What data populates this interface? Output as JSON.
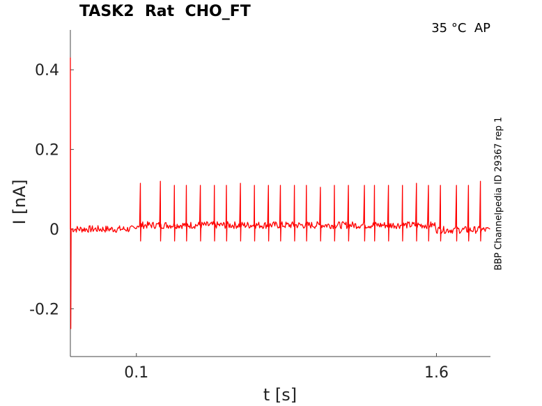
{
  "header": {
    "title": "TASK2  Rat  CHO_FT",
    "condition": "35 °C  AP"
  },
  "side_label": "BBP Channelpedia ID 29367 rep 1",
  "chart_data": {
    "type": "line",
    "title": "TASK2  Rat  CHO_FT",
    "xlabel": "t [s]",
    "ylabel": "I [nA]",
    "xlim": [
      -0.23,
      1.87
    ],
    "ylim": [
      -0.32,
      0.5
    ],
    "x_ticks": [
      {
        "value": 0.1,
        "label": "0.1"
      },
      {
        "value": 1.6,
        "label": "1.6"
      }
    ],
    "y_ticks": [
      {
        "value": 0.4,
        "label": "0.4"
      },
      {
        "value": 0.2,
        "label": "0.2"
      },
      {
        "value": 0,
        "label": "0"
      },
      {
        "value": -0.2,
        "label": "-0.2"
      }
    ],
    "grid": false,
    "series": [
      {
        "color": "#ff0000",
        "description": "AP-clamp current trace",
        "stimulus_artifact": {
          "t": -0.23,
          "peak": 0.43,
          "trough": -0.25
        },
        "baseline_before": {
          "t_start": -0.23,
          "t_end": 0.1,
          "level": 0.0
        },
        "baseline_during": {
          "t_start": 0.1,
          "t_end": 1.6,
          "level": 0.01
        },
        "baseline_after": {
          "t_start": 1.6,
          "t_end": 1.87,
          "level": -0.002
        },
        "spike_times": [
          0.12,
          0.22,
          0.29,
          0.35,
          0.42,
          0.49,
          0.55,
          0.62,
          0.69,
          0.76,
          0.82,
          0.89,
          0.95,
          1.02,
          1.09,
          1.16,
          1.24,
          1.29,
          1.36,
          1.43,
          1.5,
          1.56,
          1.62,
          1.7,
          1.76,
          1.82
        ],
        "spike_peaks": [
          0.115,
          0.12,
          0.11,
          0.11,
          0.11,
          0.11,
          0.11,
          0.115,
          0.11,
          0.11,
          0.11,
          0.11,
          0.11,
          0.105,
          0.11,
          0.11,
          0.11,
          0.11,
          0.11,
          0.11,
          0.115,
          0.11,
          0.11,
          0.11,
          0.11,
          0.12
        ],
        "spike_trough": -0.03
      }
    ]
  }
}
